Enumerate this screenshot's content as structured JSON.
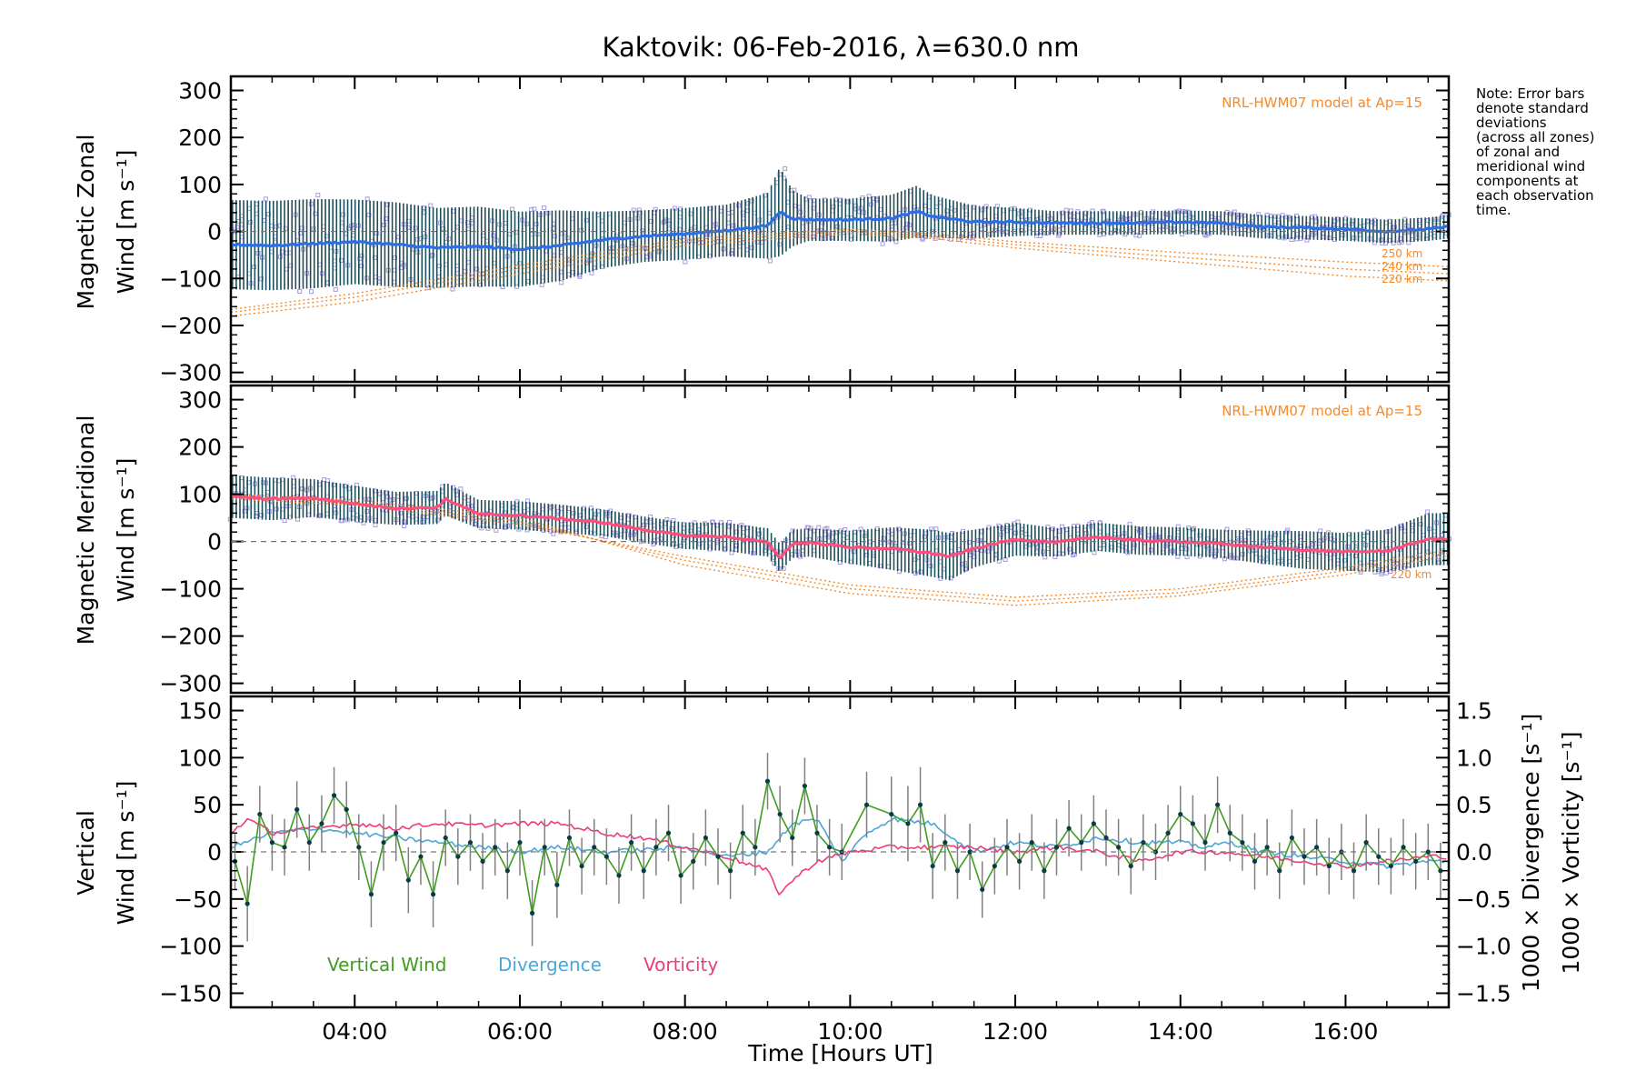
{
  "title": "Kaktovik: 06-Feb-2016, λ=630.0 nm",
  "note": [
    "Note: Error bars",
    "denote standard",
    "deviations",
    "(across all zones)",
    "of zonal and",
    "meridional wind",
    "components at",
    "each observation",
    "time."
  ],
  "x_axis": {
    "label": "Time [Hours UT]",
    "ticks": [
      "04:00",
      "06:00",
      "08:00",
      "10:00",
      "12:00",
      "14:00",
      "16:00"
    ],
    "tick_hours": [
      4,
      6,
      8,
      10,
      12,
      14,
      16
    ],
    "range_hours": [
      2.5,
      17.25
    ]
  },
  "colors": {
    "zonal": "#2c6ee8",
    "meridional": "#ff4d7c",
    "model": "#f58a2a",
    "zone_scatter": "#a99be0",
    "error_bar": "#1e4f5a",
    "vertical": "#3f9d1f",
    "divergence": "#4aa8d8",
    "vorticity": "#ee3b7b",
    "vertical_error": "#808080"
  },
  "panels": {
    "zonal": {
      "ylabel_line1": "Magnetic Zonal",
      "ylabel_line2": "Wind [m s⁻¹]",
      "yticks": [
        "300",
        "200",
        "100",
        "0",
        "−100",
        "−200",
        "−300"
      ],
      "ytick_values": [
        300,
        200,
        100,
        0,
        -100,
        -200,
        -300
      ],
      "ylim": [
        -320,
        330
      ],
      "model_label": "NRL-HWM07 model at Ap=15",
      "alt_labels": [
        "250 km",
        "240 km",
        "220 km"
      ]
    },
    "meridional": {
      "ylabel_line1": "Magnetic Meridional",
      "ylabel_line2": "Wind [m s⁻¹]",
      "yticks": [
        "300",
        "200",
        "100",
        "0",
        "−100",
        "−200",
        "−300"
      ],
      "ytick_values": [
        300,
        200,
        100,
        0,
        -100,
        -200,
        -300
      ],
      "ylim": [
        -320,
        330
      ],
      "model_label": "NRL-HWM07 model at Ap=15",
      "alt_labels": [
        "220 km"
      ]
    },
    "vertical": {
      "ylabel_line1": "Vertical",
      "ylabel_line2": "Wind [m s⁻¹]",
      "yticks": [
        "150",
        "100",
        "50",
        "0",
        "−50",
        "−100",
        "−150"
      ],
      "ytick_values": [
        150,
        100,
        50,
        0,
        -50,
        -100,
        -150
      ],
      "ylim": [
        -165,
        165
      ],
      "right_ticks": [
        "1.5",
        "1.0",
        "0.5",
        "0.0",
        "−0.5",
        "−1.0",
        "−1.5"
      ],
      "right_tick_values": [
        1.5,
        1.0,
        0.5,
        0.0,
        -0.5,
        -1.0,
        -1.5
      ],
      "right_ylim": [
        -1.65,
        1.65
      ],
      "right_label_div": "1000 × Divergence [s⁻¹]",
      "right_label_vort": "1000 × Vorticity [s⁻¹]",
      "legend": [
        "Vertical Wind",
        "Divergence",
        "Vorticity"
      ]
    }
  },
  "chart_data": [
    {
      "type": "line",
      "title": "Kaktovik: 06-Feb-2016, λ=630.0 nm",
      "xlabel": "Time [Hours UT]",
      "ylabel": "Magnetic Zonal Wind [m s⁻¹]",
      "ylim": [
        -320,
        330
      ],
      "series": [
        {
          "name": "Magnetic Zonal Wind",
          "x": [
            2.5,
            3.0,
            3.5,
            4.0,
            4.5,
            5.0,
            5.5,
            6.0,
            6.5,
            7.0,
            7.5,
            8.0,
            8.5,
            9.0,
            9.15,
            9.3,
            9.5,
            10.0,
            10.5,
            10.8,
            11.0,
            11.5,
            12.0,
            12.5,
            13.0,
            13.5,
            14.0,
            14.5,
            15.0,
            15.5,
            16.0,
            16.5,
            17.0,
            17.25
          ],
          "y": [
            -28,
            -30,
            -26,
            -22,
            -28,
            -35,
            -32,
            -38,
            -30,
            -18,
            -10,
            -5,
            2,
            12,
            42,
            28,
            25,
            25,
            28,
            42,
            32,
            20,
            20,
            18,
            18,
            18,
            20,
            18,
            10,
            8,
            5,
            0,
            5,
            10
          ],
          "error": [
            95,
            95,
            95,
            90,
            90,
            85,
            85,
            80,
            75,
            60,
            55,
            55,
            55,
            70,
            95,
            60,
            45,
            45,
            50,
            55,
            45,
            35,
            30,
            25,
            25,
            25,
            25,
            25,
            25,
            25,
            25,
            25,
            25,
            25
          ]
        },
        {
          "name": "220 km",
          "x": [
            2.5,
            4.0,
            6.0,
            8.0,
            10.0,
            11.0,
            12.0,
            14.0,
            16.0,
            17.25
          ],
          "y": [
            -180,
            -150,
            -90,
            -30,
            -5,
            -15,
            -35,
            -65,
            -95,
            -105
          ]
        },
        {
          "name": "240 km",
          "x": [
            2.5,
            4.0,
            6.0,
            8.0,
            10.0,
            11.0,
            12.0,
            14.0,
            16.0,
            17.25
          ],
          "y": [
            -172,
            -140,
            -80,
            -22,
            0,
            -10,
            -28,
            -55,
            -80,
            -90
          ]
        },
        {
          "name": "250 km",
          "x": [
            2.5,
            4.0,
            6.0,
            8.0,
            10.0,
            11.0,
            12.0,
            14.0,
            16.0,
            17.25
          ],
          "y": [
            -166,
            -132,
            -72,
            -16,
            5,
            -5,
            -22,
            -45,
            -65,
            -75
          ]
        }
      ]
    },
    {
      "type": "line",
      "xlabel": "Time [Hours UT]",
      "ylabel": "Magnetic Meridional Wind [m s⁻¹]",
      "ylim": [
        -320,
        330
      ],
      "series": [
        {
          "name": "Magnetic Meridional Wind",
          "x": [
            2.5,
            3.0,
            3.5,
            4.0,
            4.5,
            5.0,
            5.1,
            5.5,
            6.0,
            6.5,
            7.0,
            7.5,
            8.0,
            8.5,
            9.0,
            9.15,
            9.3,
            9.5,
            10.0,
            10.5,
            11.0,
            11.2,
            11.5,
            12.0,
            12.5,
            13.0,
            13.5,
            14.0,
            14.5,
            15.0,
            15.5,
            16.0,
            16.5,
            17.0,
            17.25
          ],
          "y": [
            95,
            90,
            92,
            80,
            70,
            72,
            90,
            58,
            55,
            48,
            40,
            25,
            12,
            10,
            -2,
            -35,
            -5,
            -2,
            -12,
            -15,
            -25,
            -32,
            -15,
            5,
            -2,
            10,
            2,
            0,
            -5,
            -12,
            -18,
            -22,
            -20,
            5,
            5
          ],
          "error": [
            45,
            45,
            40,
            38,
            35,
            35,
            35,
            30,
            30,
            30,
            28,
            28,
            28,
            30,
            30,
            30,
            30,
            30,
            35,
            45,
            50,
            50,
            40,
            35,
            30,
            30,
            30,
            30,
            30,
            35,
            40,
            40,
            45,
            55,
            55
          ]
        },
        {
          "name": "220 km",
          "x": [
            2.5,
            4.0,
            6.0,
            8.0,
            10.0,
            12.0,
            14.0,
            16.0,
            17.25
          ],
          "y": [
            100,
            88,
            50,
            -50,
            -110,
            -135,
            -115,
            -70,
            -30
          ]
        },
        {
          "name": "240 km",
          "x": [
            2.5,
            4.0,
            6.0,
            8.0,
            10.0,
            12.0,
            14.0,
            16.0,
            17.25
          ],
          "y": [
            95,
            82,
            42,
            -40,
            -100,
            -126,
            -108,
            -62,
            -24
          ]
        },
        {
          "name": "250 km",
          "x": [
            2.5,
            4.0,
            6.0,
            8.0,
            10.0,
            12.0,
            14.0,
            16.0,
            17.25
          ],
          "y": [
            90,
            77,
            36,
            -32,
            -92,
            -118,
            -100,
            -55,
            -18
          ]
        }
      ]
    },
    {
      "type": "line",
      "xlabel": "Time [Hours UT]",
      "ylabel": "Vertical Wind [m s⁻¹]",
      "ylim": [
        -165,
        165
      ],
      "series": [
        {
          "name": "Vertical Wind",
          "x": [
            2.55,
            2.7,
            2.85,
            3.0,
            3.15,
            3.3,
            3.45,
            3.6,
            3.75,
            3.9,
            4.05,
            4.2,
            4.35,
            4.5,
            4.65,
            4.8,
            4.95,
            5.1,
            5.25,
            5.4,
            5.55,
            5.7,
            5.85,
            6.0,
            6.15,
            6.3,
            6.45,
            6.6,
            6.75,
            6.9,
            7.05,
            7.2,
            7.35,
            7.5,
            7.65,
            7.8,
            7.95,
            8.1,
            8.25,
            8.4,
            8.55,
            8.7,
            8.85,
            9.0,
            9.15,
            9.3,
            9.45,
            9.6,
            9.75,
            9.9,
            10.2,
            10.5,
            10.7,
            10.85,
            11.0,
            11.15,
            11.3,
            11.45,
            11.6,
            11.75,
            11.9,
            12.05,
            12.2,
            12.35,
            12.5,
            12.65,
            12.8,
            12.95,
            13.1,
            13.25,
            13.4,
            13.55,
            13.7,
            13.85,
            14.0,
            14.15,
            14.3,
            14.45,
            14.6,
            14.75,
            14.9,
            15.05,
            15.2,
            15.35,
            15.5,
            15.65,
            15.8,
            15.95,
            16.1,
            16.25,
            16.4,
            16.55,
            16.7,
            16.85,
            17.0,
            17.15
          ],
          "y": [
            -10,
            -55,
            40,
            10,
            5,
            45,
            10,
            30,
            60,
            45,
            5,
            -45,
            10,
            20,
            -30,
            -5,
            -45,
            15,
            -5,
            10,
            -10,
            5,
            -20,
            10,
            -65,
            5,
            -35,
            15,
            -15,
            5,
            -5,
            -25,
            10,
            -20,
            5,
            20,
            -25,
            -10,
            15,
            -5,
            -20,
            20,
            5,
            75,
            40,
            15,
            70,
            20,
            5,
            0,
            50,
            40,
            30,
            50,
            -15,
            10,
            -20,
            0,
            -40,
            -15,
            5,
            -10,
            10,
            -20,
            5,
            25,
            10,
            30,
            15,
            5,
            -15,
            10,
            0,
            20,
            40,
            30,
            10,
            50,
            20,
            10,
            -10,
            5,
            -20,
            15,
            -5,
            5,
            -15,
            0,
            -20,
            10,
            -5,
            -15,
            5,
            -10,
            0,
            -20
          ],
          "error": [
            30,
            40,
            30,
            30,
            30,
            30,
            30,
            30,
            30,
            30,
            35,
            35,
            30,
            30,
            35,
            30,
            35,
            30,
            30,
            30,
            30,
            30,
            30,
            35,
            35,
            30,
            35,
            30,
            30,
            30,
            30,
            30,
            30,
            30,
            30,
            30,
            30,
            30,
            30,
            30,
            30,
            30,
            30,
            30,
            30,
            30,
            30,
            30,
            30,
            30,
            35,
            40,
            40,
            40,
            35,
            30,
            30,
            30,
            30,
            30,
            30,
            30,
            30,
            30,
            30,
            30,
            30,
            30,
            30,
            30,
            30,
            30,
            30,
            30,
            30,
            30,
            30,
            30,
            30,
            30,
            30,
            30,
            30,
            30,
            30,
            30,
            30,
            30,
            30,
            30,
            30,
            30,
            30,
            30,
            30,
            30
          ]
        },
        {
          "name": "Divergence",
          "x": [
            2.5,
            3.0,
            3.5,
            4.0,
            4.5,
            5.0,
            5.5,
            6.0,
            6.5,
            7.0,
            7.5,
            8.0,
            8.5,
            9.0,
            9.3,
            9.6,
            9.9,
            10.2,
            10.5,
            11.0,
            11.5,
            12.0,
            12.5,
            13.0,
            13.5,
            14.0,
            14.3,
            14.6,
            15.0,
            15.5,
            16.0,
            16.5,
            17.0,
            17.25
          ],
          "y": [
            0.05,
            0.2,
            0.25,
            0.2,
            0.15,
            0.1,
            0.05,
            0.0,
            0.05,
            0.0,
            0.02,
            0.05,
            -0.05,
            0.0,
            0.3,
            0.35,
            -0.1,
            0.2,
            0.35,
            0.3,
            0.0,
            0.1,
            0.05,
            0.15,
            0.1,
            0.1,
            0.05,
            0.1,
            0.0,
            -0.05,
            -0.1,
            -0.15,
            -0.1,
            -0.1
          ]
        },
        {
          "name": "Vorticity",
          "x": [
            2.5,
            2.7,
            3.0,
            3.5,
            4.0,
            4.5,
            5.0,
            5.5,
            6.0,
            6.5,
            7.0,
            7.5,
            8.0,
            8.5,
            9.0,
            9.15,
            9.3,
            9.6,
            10.0,
            10.5,
            11.0,
            11.5,
            12.0,
            12.5,
            13.0,
            13.5,
            14.0,
            14.5,
            15.0,
            15.5,
            16.0,
            16.5,
            17.0,
            17.25
          ],
          "y": [
            0.2,
            0.35,
            0.2,
            0.25,
            0.3,
            0.25,
            0.3,
            0.28,
            0.3,
            0.3,
            0.2,
            0.15,
            0.05,
            -0.05,
            -0.2,
            -0.45,
            -0.3,
            -0.1,
            0.0,
            0.05,
            0.05,
            0.05,
            0.0,
            0.05,
            0.0,
            -0.1,
            0.0,
            0.0,
            -0.05,
            -0.1,
            -0.15,
            -0.1,
            -0.05,
            -0.05
          ]
        }
      ]
    }
  ]
}
